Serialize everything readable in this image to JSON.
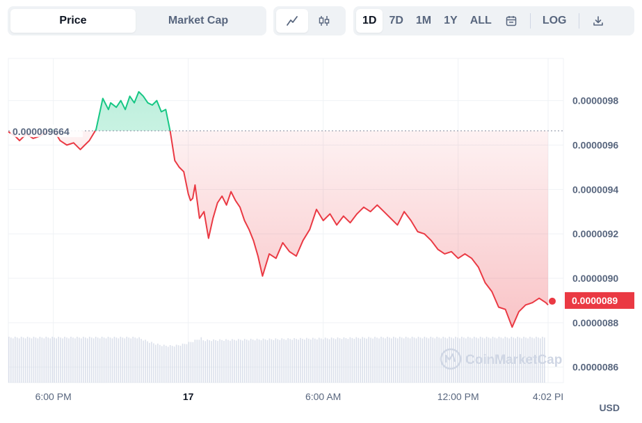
{
  "toolbar": {
    "chart_type_tabs": [
      {
        "label": "Price",
        "active": true
      },
      {
        "label": "Market Cap",
        "active": false
      }
    ],
    "chart_style_buttons": [
      {
        "icon": "line-chart-icon",
        "active": true
      },
      {
        "icon": "candlestick-icon",
        "active": false
      }
    ],
    "range_buttons": [
      {
        "label": "1D",
        "active": true
      },
      {
        "label": "7D",
        "active": false
      },
      {
        "label": "1M",
        "active": false
      },
      {
        "label": "1Y",
        "active": false
      },
      {
        "label": "ALL",
        "active": false
      }
    ],
    "calendar_icon": "calendar-icon",
    "log_label": "LOG",
    "download_icon": "download-icon"
  },
  "currency": "USD",
  "watermark": "CoinMarketCap",
  "colors": {
    "up": "#16c784",
    "down": "#ea3943",
    "grid": "#eff2f5",
    "axis_text": "#58667e",
    "volume": "#cfd6e4"
  },
  "chart_data": {
    "type": "line",
    "title": "",
    "xlabel": "",
    "ylabel": "",
    "x_ticks": [
      "6:00 PM",
      "17",
      "6:00 AM",
      "12:00 PM",
      "4:02 PI"
    ],
    "y_ticks": [
      "0.0000086",
      "0.0000088",
      "0.0000090",
      "0.0000092",
      "0.0000094",
      "0.0000096",
      "0.0000098"
    ],
    "ylim": [
      8.53e-06,
      9.99e-06
    ],
    "reference_price": 9.664e-06,
    "reference_label": "0.000009664",
    "current_price": 8.9e-06,
    "current_label": "0.0000089",
    "x_range_hours": [
      0,
      24
    ],
    "series": [
      {
        "x": [
          0,
          0.3,
          0.5,
          0.8,
          1.1,
          1.4,
          1.7,
          2.0,
          2.3,
          2.6,
          2.9,
          3.2,
          3.4,
          3.6,
          3.9,
          4.2,
          4.45,
          4.55,
          4.8,
          5.0,
          5.2,
          5.4,
          5.6,
          5.8,
          6.0,
          6.2,
          6.4,
          6.6,
          6.8,
          7.0,
          7.2,
          7.4,
          7.6,
          7.8,
          8.0,
          8.1,
          8.2,
          8.3,
          8.5,
          8.7,
          8.9,
          9.1,
          9.3,
          9.5,
          9.7,
          9.9,
          10.1,
          10.3,
          10.5,
          10.7,
          10.9,
          11.1,
          11.3,
          11.6,
          11.9,
          12.2,
          12.5,
          12.8,
          13.1,
          13.4,
          13.7,
          14.0,
          14.3,
          14.6,
          14.9,
          15.2,
          15.5,
          15.8,
          16.1,
          16.4,
          16.7,
          17.0,
          17.3,
          17.6,
          17.9,
          18.2,
          18.5,
          18.8,
          19.1,
          19.4,
          19.7,
          20.0,
          20.3,
          20.6,
          20.9,
          21.2,
          21.5,
          21.8,
          22.1,
          22.4,
          22.7,
          23.0,
          23.3,
          23.6,
          23.9,
          24.0
        ],
        "y": [
          9.66e-06,
          9.64e-06,
          9.62e-06,
          9.65e-06,
          9.63e-06,
          9.64e-06,
          9.66e-06,
          9.67e-06,
          9.62e-06,
          9.6e-06,
          9.61e-06,
          9.58e-06,
          9.6e-06,
          9.62e-06,
          9.67e-06,
          9.81e-06,
          9.76e-06,
          9.79e-06,
          9.77e-06,
          9.8e-06,
          9.76e-06,
          9.82e-06,
          9.79e-06,
          9.84e-06,
          9.82e-06,
          9.79e-06,
          9.78e-06,
          9.8e-06,
          9.75e-06,
          9.76e-06,
          9.66e-06,
          9.53e-06,
          9.5e-06,
          9.48e-06,
          9.38e-06,
          9.35e-06,
          9.36e-06,
          9.42e-06,
          9.27e-06,
          9.3e-06,
          9.18e-06,
          9.27e-06,
          9.34e-06,
          9.37e-06,
          9.33e-06,
          9.39e-06,
          9.35e-06,
          9.32e-06,
          9.26e-06,
          9.22e-06,
          9.17e-06,
          9.1e-06,
          9.01e-06,
          9.11e-06,
          9.09e-06,
          9.16e-06,
          9.12e-06,
          9.1e-06,
          9.17e-06,
          9.22e-06,
          9.31e-06,
          9.26e-06,
          9.29e-06,
          9.24e-06,
          9.28e-06,
          9.25e-06,
          9.29e-06,
          9.32e-06,
          9.3e-06,
          9.33e-06,
          9.3e-06,
          9.27e-06,
          9.24e-06,
          9.3e-06,
          9.26e-06,
          9.21e-06,
          9.2e-06,
          9.17e-06,
          9.13e-06,
          9.11e-06,
          9.12e-06,
          9.09e-06,
          9.11e-06,
          9.09e-06,
          9.05e-06,
          8.98e-06,
          8.94e-06,
          8.87e-06,
          8.86e-06,
          8.78e-06,
          8.85e-06,
          8.88e-06,
          8.89e-06,
          8.91e-06,
          8.89e-06,
          8.88e-06
        ]
      }
    ],
    "grid": true,
    "legend": "none",
    "volume_bars": true
  }
}
